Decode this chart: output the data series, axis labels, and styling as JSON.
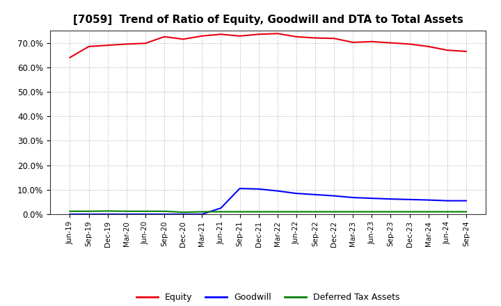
{
  "title": "[7059]  Trend of Ratio of Equity, Goodwill and DTA to Total Assets",
  "x_labels": [
    "Jun-19",
    "Sep-19",
    "Dec-19",
    "Mar-20",
    "Jun-20",
    "Sep-20",
    "Dec-20",
    "Mar-21",
    "Jun-21",
    "Sep-21",
    "Dec-21",
    "Mar-22",
    "Jun-22",
    "Sep-22",
    "Dec-22",
    "Mar-23",
    "Jun-23",
    "Sep-23",
    "Dec-23",
    "Mar-24",
    "Jun-24",
    "Sep-24"
  ],
  "equity": [
    64.0,
    68.5,
    69.0,
    69.5,
    69.8,
    72.5,
    71.5,
    72.8,
    73.5,
    72.8,
    73.5,
    73.8,
    72.5,
    72.0,
    71.8,
    70.2,
    70.5,
    70.0,
    69.5,
    68.5,
    67.0,
    66.5
  ],
  "goodwill": [
    0.0,
    0.0,
    0.0,
    0.0,
    0.0,
    0.0,
    0.0,
    0.0,
    2.5,
    10.5,
    10.3,
    9.5,
    8.5,
    8.0,
    7.5,
    6.8,
    6.5,
    6.2,
    6.0,
    5.8,
    5.5,
    5.5
  ],
  "dta": [
    1.2,
    1.2,
    1.3,
    1.2,
    1.2,
    1.2,
    0.8,
    1.0,
    1.0,
    1.0,
    1.0,
    1.0,
    1.0,
    1.0,
    1.0,
    1.0,
    1.0,
    1.0,
    1.0,
    1.0,
    1.0,
    1.0
  ],
  "equity_color": "#e8000d",
  "goodwill_color": "#0000ff",
  "dta_color": "#008000",
  "ylim": [
    0,
    75
  ],
  "yticks": [
    0,
    10,
    20,
    30,
    40,
    50,
    60,
    70
  ],
  "ytick_labels": [
    "0.0%",
    "10.0%",
    "20.0%",
    "30.0%",
    "40.0%",
    "50.0%",
    "60.0%",
    "70.0%"
  ],
  "bg_color": "#ffffff",
  "plot_bg_color": "#ffffff",
  "grid_color": "#aaaaaa",
  "legend_labels": [
    "Equity",
    "Goodwill",
    "Deferred Tax Assets"
  ]
}
